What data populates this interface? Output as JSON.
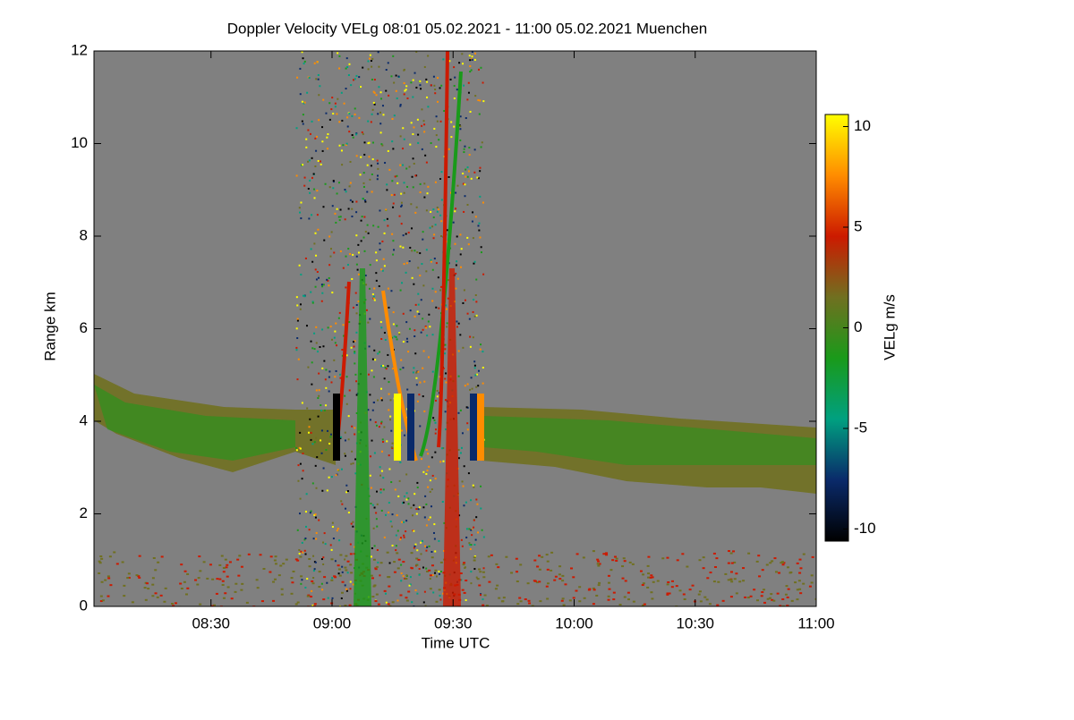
{
  "chart_data": {
    "type": "heatmap",
    "title": "Doppler Velocity VELg   08:01 05.02.2021 - 11:00 05.02.2021 Muenchen",
    "x_label": "Time UTC",
    "y_label": "Range km",
    "xlim": [
      481,
      660
    ],
    "xticks": [
      {
        "value": 510,
        "label": "08:30"
      },
      {
        "value": 540,
        "label": "09:00"
      },
      {
        "value": 570,
        "label": "09:30"
      },
      {
        "value": 600,
        "label": "10:00"
      },
      {
        "value": 630,
        "label": "10:30"
      },
      {
        "value": 660,
        "label": "11:00"
      }
    ],
    "ylim": [
      0,
      12
    ],
    "yticks": [
      0,
      2,
      4,
      6,
      8,
      10,
      12
    ],
    "colorbar": {
      "label": "VELg m/s",
      "lim": [
        -10.6,
        10.6
      ],
      "ticks": [
        -10,
        -5,
        0,
        5,
        10
      ],
      "colormap": [
        "#000000",
        "#0a2a6a",
        "#00a080",
        "#1a9a1a",
        "#707020",
        "#cc1a00",
        "#ff8c00",
        "#ffff00"
      ]
    },
    "background_color": "#808080"
  }
}
